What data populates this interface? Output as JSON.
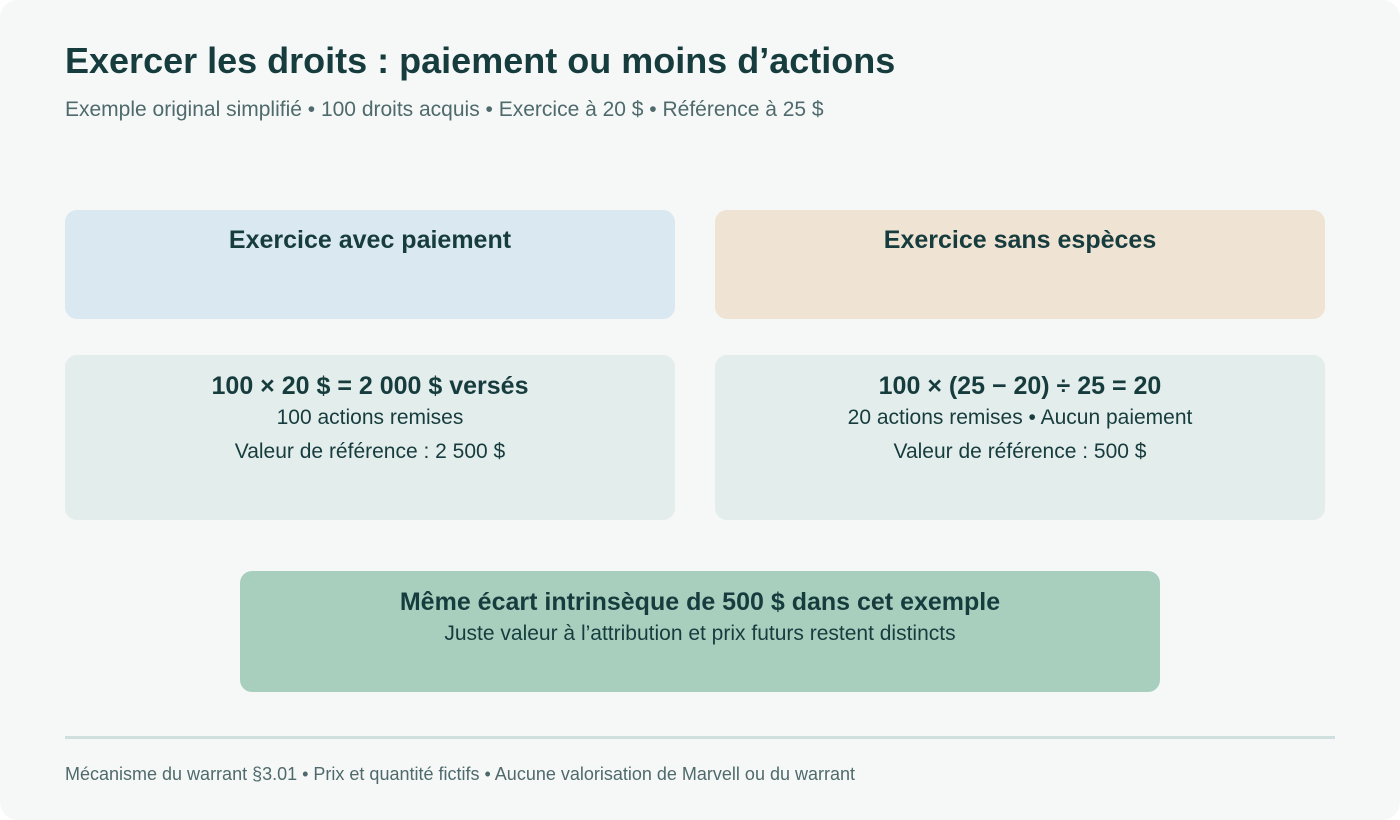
{
  "header": {
    "title": "Exercer les droits : paiement ou moins d’actions",
    "subtitle": "Exemple original simplifié • 100 droits acquis • Exercice à 20 $ • Référence à 25 $"
  },
  "columns": [
    {
      "heading": "Exercice avec paiement",
      "formula": "100 × 20 $ = 2 000 $ versés",
      "line1": "100 actions remises",
      "line2": "Valeur de référence : 2 500 $"
    },
    {
      "heading": "Exercice sans espèces",
      "formula": "100 × (25 − 20) ÷ 25 = 20",
      "line1": "20 actions remises • Aucun paiement",
      "line2": "Valeur de référence : 500 $"
    }
  ],
  "result": {
    "title": "Même écart intrinsèque de 500 $ dans cet exemple",
    "subtitle": "Juste valeur à l’attribution et prix futurs restent distincts"
  },
  "footer": {
    "text": "Mécanisme du warrant §3.01 • Prix et quantité fictifs • Aucune valorisation de Marvell ou du warrant"
  },
  "colors": {
    "background": "#f6f8f7",
    "text": "#173c3e",
    "muted": "#4f6a6c",
    "cash_header": "#dae8f1",
    "cashless_header": "#efe3d3",
    "detail_box": "#e3edeb",
    "result_box": "#a8cfbe",
    "divider": "#cfdfdd"
  }
}
